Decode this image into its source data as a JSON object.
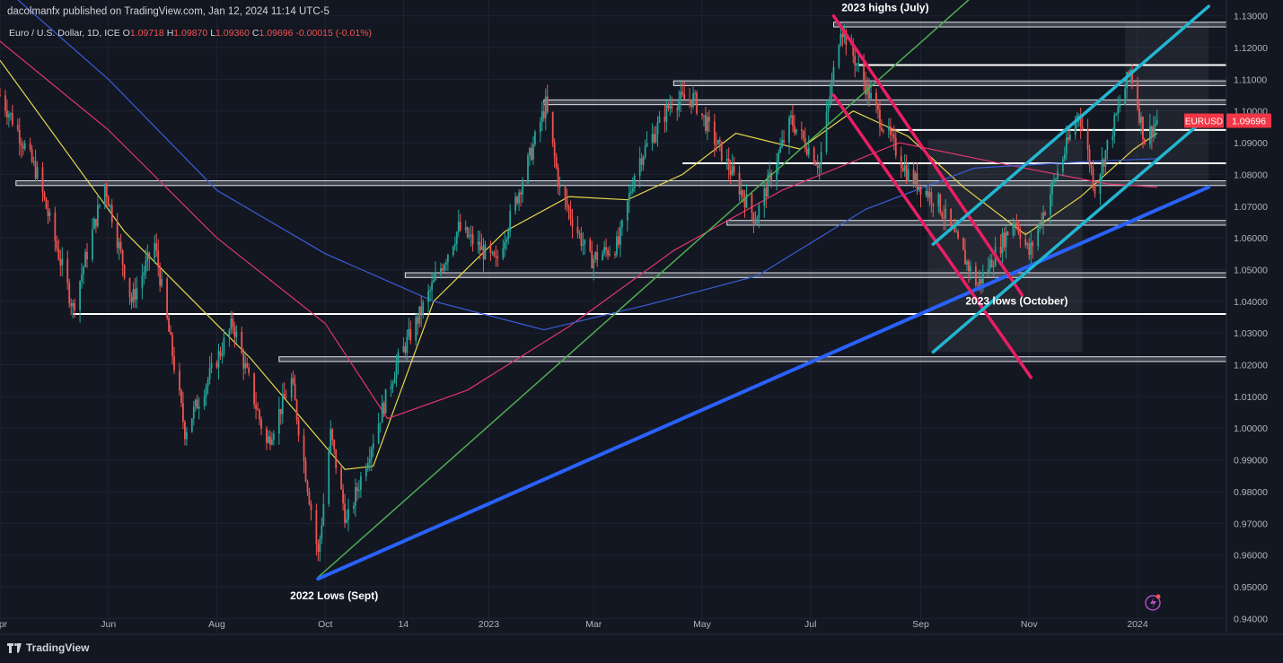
{
  "header": {
    "published": "dacolmanfx published on TradingView.com, Jan 12, 2024 11:14 UTC-5",
    "symbol_desc": "Euro / U.S. Dollar, 1D, ICE",
    "o_label": "O",
    "o_val": "1.09718",
    "h_label": "H",
    "h_val": "1.09870",
    "l_label": "L",
    "l_val": "1.09360",
    "c_label": "C",
    "c_val": "1.09696",
    "change": "-0.00015 (-0.01%)"
  },
  "brand": "TradingView",
  "colors": {
    "background": "#131722",
    "up": "#26a69a",
    "down": "#ef5350",
    "ma_yellow": "#e6d84a",
    "ma_red": "#e0356e",
    "ma_blue": "#3a5cd8",
    "trend_blue": "#2962ff",
    "trend_green": "#4caf50",
    "channel_cyan": "#22b6d0",
    "channel_pink": "#e91e63",
    "level_white": "#ffffff",
    "price_tag": "#f23645"
  },
  "chart_data": {
    "type": "candlestick",
    "symbol": "EURUSD",
    "last_price": "1.09696",
    "ylim": [
      0.935,
      1.135
    ],
    "y_ticks": [
      "1.13000",
      "1.12000",
      "1.11000",
      "1.10000",
      "1.09000",
      "1.08000",
      "1.07000",
      "1.06000",
      "1.05000",
      "1.04000",
      "1.03000",
      "1.02000",
      "1.01000",
      "1.00000",
      "0.99000",
      "0.98000",
      "0.97000",
      "0.96000",
      "0.95000",
      "0.94000"
    ],
    "x_ticks": [
      "Apr",
      "Jun",
      "Aug",
      "Oct",
      "14",
      "2023",
      "Mar",
      "May",
      "Jul",
      "Sep",
      "Nov",
      "2024"
    ],
    "x_range": [
      "2022-04-01",
      "2024-02-20"
    ],
    "x_tick_dates": [
      "2022-04-01",
      "2022-06-01",
      "2022-08-01",
      "2022-10-01",
      "2022-11-14",
      "2023-01-01",
      "2023-03-01",
      "2023-05-01",
      "2023-07-01",
      "2023-09-01",
      "2023-11-01",
      "2024-01-01"
    ],
    "price_path": [
      [
        "2022-04-01",
        1.105
      ],
      [
        "2022-04-10",
        1.095
      ],
      [
        "2022-04-22",
        1.08
      ],
      [
        "2022-05-12",
        1.038
      ],
      [
        "2022-05-30",
        1.077
      ],
      [
        "2022-06-14",
        1.04
      ],
      [
        "2022-06-27",
        1.058
      ],
      [
        "2022-07-14",
        0.999
      ],
      [
        "2022-08-10",
        1.033
      ],
      [
        "2022-08-29",
        0.995
      ],
      [
        "2022-09-12",
        1.015
      ],
      [
        "2022-09-27",
        0.96
      ],
      [
        "2022-10-04",
        0.998
      ],
      [
        "2022-10-13",
        0.97
      ],
      [
        "2022-11-10",
        1.02
      ],
      [
        "2022-11-20",
        1.032
      ],
      [
        "2022-12-15",
        1.063
      ],
      [
        "2023-01-05",
        1.052
      ],
      [
        "2023-01-26",
        1.089
      ],
      [
        "2023-02-02",
        1.102
      ],
      [
        "2023-02-10",
        1.075
      ],
      [
        "2023-02-27",
        1.053
      ],
      [
        "2023-03-15",
        1.058
      ],
      [
        "2023-03-25",
        1.083
      ],
      [
        "2023-04-14",
        1.103
      ],
      [
        "2023-04-26",
        1.104
      ],
      [
        "2023-05-31",
        1.066
      ],
      [
        "2023-06-20",
        1.097
      ],
      [
        "2023-07-06",
        1.083
      ],
      [
        "2023-07-18",
        1.127
      ],
      [
        "2023-08-07",
        1.1
      ],
      [
        "2023-08-25",
        1.08
      ],
      [
        "2023-09-11",
        1.071
      ],
      [
        "2023-10-03",
        1.045
      ],
      [
        "2023-10-24",
        1.066
      ],
      [
        "2023-11-01",
        1.055
      ],
      [
        "2023-11-29",
        1.1
      ],
      [
        "2023-12-08",
        1.076
      ],
      [
        "2023-12-28",
        1.113
      ],
      [
        "2024-01-05",
        1.091
      ],
      [
        "2024-01-12",
        1.097
      ]
    ],
    "moving_averages": [
      {
        "color": "#e6d84a",
        "points": [
          [
            "2022-04-01",
            1.116
          ],
          [
            "2022-06-10",
            1.062
          ],
          [
            "2022-08-20",
            1.022
          ],
          [
            "2022-10-12",
            0.987
          ],
          [
            "2022-10-28",
            0.988
          ],
          [
            "2022-12-01",
            1.04
          ],
          [
            "2023-01-10",
            1.062
          ],
          [
            "2023-02-15",
            1.073
          ],
          [
            "2023-03-20",
            1.072
          ],
          [
            "2023-04-20",
            1.08
          ],
          [
            "2023-05-20",
            1.093
          ],
          [
            "2023-06-25",
            1.088
          ],
          [
            "2023-07-25",
            1.1
          ],
          [
            "2023-08-25",
            1.092
          ],
          [
            "2023-09-25",
            1.076
          ],
          [
            "2023-10-30",
            1.061
          ],
          [
            "2023-11-30",
            1.073
          ],
          [
            "2023-12-30",
            1.088
          ],
          [
            "2024-01-12",
            1.093
          ]
        ]
      },
      {
        "color": "#e0356e",
        "points": [
          [
            "2022-04-01",
            1.122
          ],
          [
            "2022-06-01",
            1.094
          ],
          [
            "2022-08-01",
            1.06
          ],
          [
            "2022-10-01",
            1.033
          ],
          [
            "2022-11-05",
            1.003
          ],
          [
            "2022-12-20",
            1.012
          ],
          [
            "2023-02-15",
            1.032
          ],
          [
            "2023-04-15",
            1.056
          ],
          [
            "2023-06-15",
            1.075
          ],
          [
            "2023-08-20",
            1.09
          ],
          [
            "2023-10-20",
            1.083
          ],
          [
            "2023-12-15",
            1.077
          ],
          [
            "2024-01-12",
            1.076
          ]
        ]
      },
      {
        "color": "#3a5cd8",
        "points": [
          [
            "2022-04-01",
            1.14
          ],
          [
            "2022-06-01",
            1.11
          ],
          [
            "2022-08-01",
            1.075
          ],
          [
            "2022-10-01",
            1.055
          ],
          [
            "2022-12-01",
            1.04
          ],
          [
            "2023-02-01",
            1.031
          ],
          [
            "2023-04-01",
            1.039
          ],
          [
            "2023-06-01",
            1.048
          ],
          [
            "2023-08-01",
            1.069
          ],
          [
            "2023-10-01",
            1.082
          ],
          [
            "2023-12-01",
            1.084
          ],
          [
            "2024-01-12",
            1.085
          ]
        ]
      }
    ],
    "annotations": [
      {
        "id": "highs",
        "text": "2023 highs (July)"
      },
      {
        "id": "lows23",
        "text": "2023 lows (October)"
      },
      {
        "id": "lows22",
        "text": "2022 Lows (Sept)"
      }
    ]
  }
}
